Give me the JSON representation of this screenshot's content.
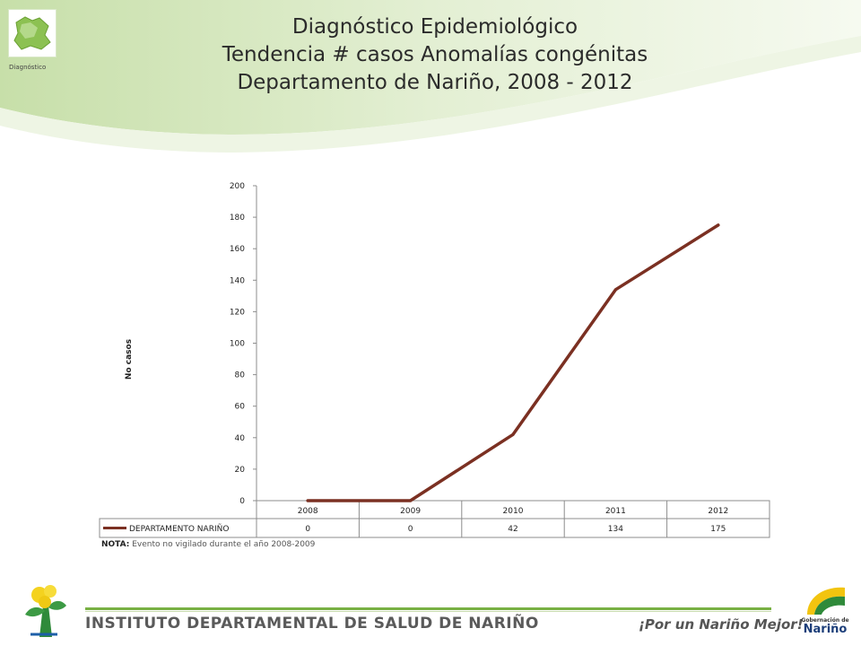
{
  "header": {
    "logo_caption": "Diagnóstico",
    "title_lines": [
      "Diagnóstico Epidemiológico",
      "Tendencia # casos Anomalías  congénitas",
      "Departamento de Nariño,  2008 - 2012"
    ]
  },
  "chart_data": {
    "type": "line",
    "title": "",
    "xlabel": "",
    "ylabel": "No casos",
    "categories": [
      "2008",
      "2009",
      "2010",
      "2011",
      "2012"
    ],
    "series": [
      {
        "name": "DEPARTAMENTO NARIÑO",
        "values": [
          0,
          0,
          42,
          134,
          175
        ],
        "color": "#7b3022"
      }
    ],
    "ylim": [
      0,
      200
    ],
    "yticks": [
      0,
      20,
      40,
      60,
      80,
      100,
      120,
      140,
      160,
      180,
      200
    ],
    "grid": false,
    "legend": "data-table",
    "data_table": true
  },
  "note": {
    "label": "NOTA:",
    "text": " Evento no vigilado durante el año 2008-2009"
  },
  "footer": {
    "institute": "INSTITUTO DEPARTAMENTAL DE SALUD DE NARIÑO",
    "slogan": "¡Por un Nariño Mejor!",
    "gob_small": "Gobernación de",
    "gob_big": "Nariño"
  },
  "colors": {
    "accent_green": "#78b043",
    "series_line": "#7b3022"
  }
}
